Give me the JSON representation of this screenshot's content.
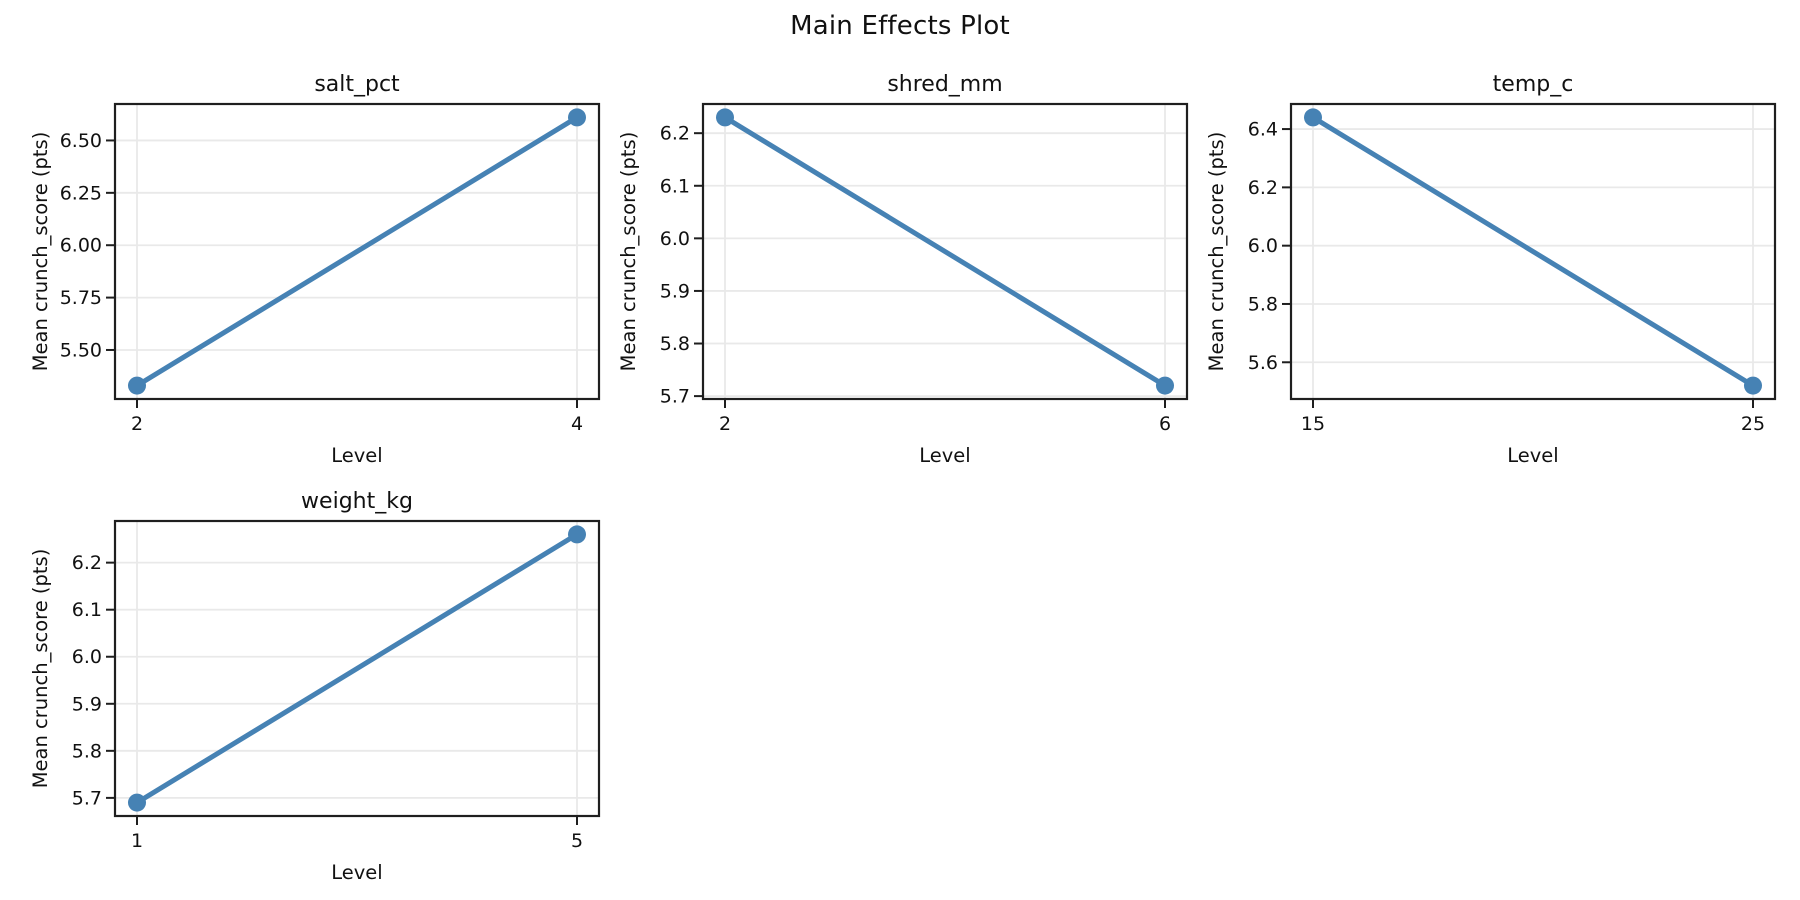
{
  "figure": {
    "suptitle": "Main Effects Plot",
    "background": "#ffffff",
    "colors": {
      "line": "#4682b4",
      "grid": "#e9e9e9",
      "axis": "#1f1f1f",
      "text": "#111111"
    }
  },
  "chart_data": [
    {
      "type": "line",
      "title": "salt_pct",
      "xlabel": "Level",
      "ylabel": "Mean crunch_score (pts)",
      "x": [
        2,
        4
      ],
      "x_labels": [
        "2",
        "4"
      ],
      "values": [
        5.33,
        6.61
      ],
      "xlim": [
        1.9,
        4.1
      ],
      "ylim": [
        5.266,
        6.674
      ],
      "yticks": [
        5.5,
        5.75,
        6.0,
        6.25,
        6.5
      ],
      "ytick_labels": [
        "5.50",
        "5.75",
        "6.00",
        "6.25",
        "6.50"
      ],
      "grid": true,
      "legend": false
    },
    {
      "type": "line",
      "title": "shred_mm",
      "xlabel": "Level",
      "ylabel": "Mean crunch_score (pts)",
      "x": [
        2,
        6
      ],
      "x_labels": [
        "2",
        "6"
      ],
      "values": [
        6.23,
        5.72
      ],
      "xlim": [
        1.8,
        6.2
      ],
      "ylim": [
        5.6945,
        6.2555
      ],
      "yticks": [
        5.7,
        5.8,
        5.9,
        6.0,
        6.1,
        6.2
      ],
      "ytick_labels": [
        "5.7",
        "5.8",
        "5.9",
        "6.0",
        "6.1",
        "6.2"
      ],
      "grid": true,
      "legend": false
    },
    {
      "type": "line",
      "title": "temp_c",
      "xlabel": "Level",
      "ylabel": "Mean crunch_score (pts)",
      "x": [
        15,
        25
      ],
      "x_labels": [
        "15",
        "25"
      ],
      "values": [
        6.44,
        5.52
      ],
      "xlim": [
        14.5,
        25.5
      ],
      "ylim": [
        5.474,
        6.486
      ],
      "yticks": [
        5.6,
        5.8,
        6.0,
        6.2,
        6.4
      ],
      "ytick_labels": [
        "5.6",
        "5.8",
        "6.0",
        "6.2",
        "6.4"
      ],
      "grid": true,
      "legend": false
    },
    {
      "type": "line",
      "title": "weight_kg",
      "xlabel": "Level",
      "ylabel": "Mean crunch_score (pts)",
      "x": [
        1,
        5
      ],
      "x_labels": [
        "1",
        "5"
      ],
      "values": [
        5.69,
        6.26
      ],
      "xlim": [
        0.8,
        5.2
      ],
      "ylim": [
        5.6615,
        6.2885
      ],
      "yticks": [
        5.7,
        5.8,
        5.9,
        6.0,
        6.1,
        6.2
      ],
      "ytick_labels": [
        "5.7",
        "5.8",
        "5.9",
        "6.0",
        "6.1",
        "6.2"
      ],
      "grid": true,
      "legend": false
    }
  ]
}
